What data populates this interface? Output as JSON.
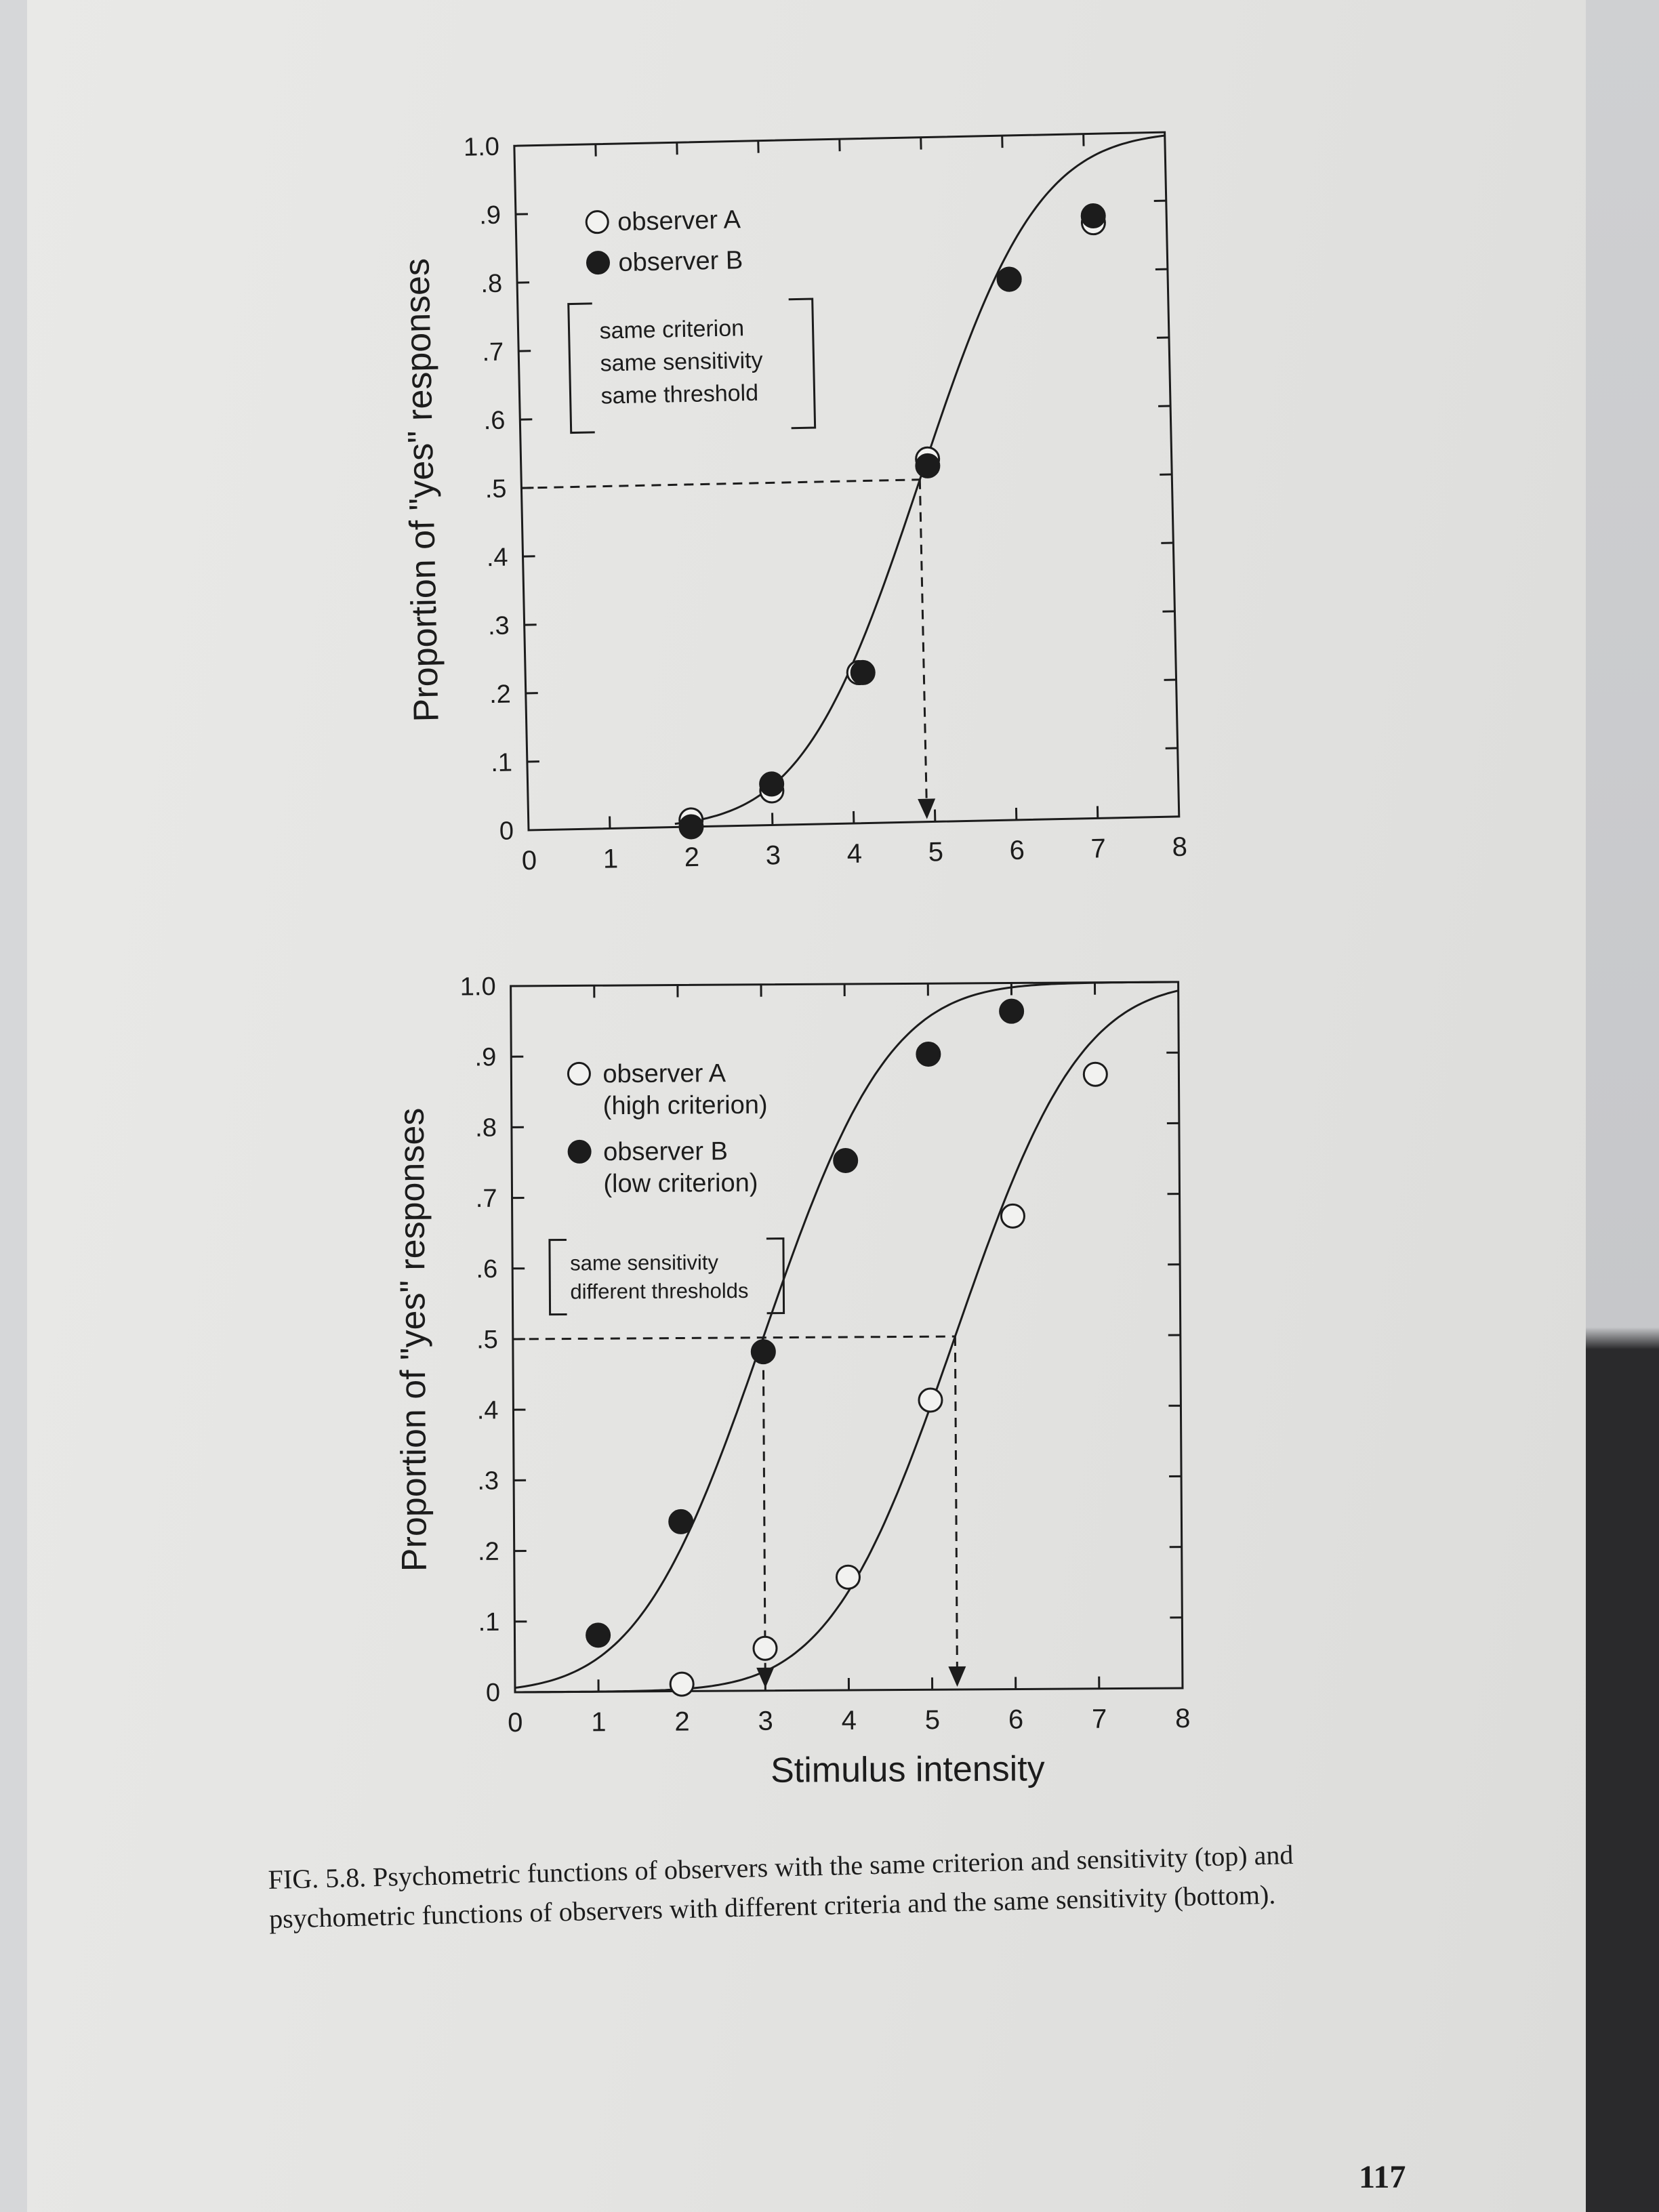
{
  "chart_data": [
    {
      "type": "line",
      "title": "",
      "xlabel": "",
      "ylabel": "Proportion of \"yes\" responses",
      "xlim": [
        0,
        8
      ],
      "ylim": [
        0,
        1.0
      ],
      "x_ticks": [
        "0",
        "1",
        "2",
        "3",
        "4",
        "5",
        "6",
        "7",
        "8"
      ],
      "y_ticks": [
        "0",
        ".1",
        ".2",
        ".3",
        ".4",
        ".5",
        ".6",
        ".7",
        ".8",
        ".9",
        "1.0"
      ],
      "legend": [
        "observer A",
        "observer B"
      ],
      "legend_position": "top-left",
      "annotation": [
        "same criterion",
        "same sensitivity",
        "same threshold"
      ],
      "series": [
        {
          "name": "observer A",
          "marker": "open-circle",
          "x": [
            2,
            3,
            4.1,
            5,
            6.05,
            7.1
          ],
          "y": [
            0.01,
            0.05,
            0.22,
            0.53,
            0.79,
            0.87
          ]
        },
        {
          "name": "observer B",
          "marker": "filled-circle",
          "x": [
            2,
            3,
            4.15,
            5,
            6.05,
            7.1
          ],
          "y": [
            0.0,
            0.06,
            0.22,
            0.52,
            0.79,
            0.88
          ]
        }
      ],
      "curve": {
        "mu": 4.9,
        "sigma": 1.2
      },
      "threshold": {
        "x": 4.9,
        "y": 0.5
      }
    },
    {
      "type": "line",
      "title": "",
      "xlabel": "Stimulus intensity",
      "ylabel": "Proportion of \"yes\" responses",
      "xlim": [
        0,
        8
      ],
      "ylim": [
        0,
        1.0
      ],
      "x_ticks": [
        "0",
        "1",
        "2",
        "3",
        "4",
        "5",
        "6",
        "7",
        "8"
      ],
      "y_ticks": [
        "0",
        ".1",
        ".2",
        ".3",
        ".4",
        ".5",
        ".6",
        ".7",
        ".8",
        ".9",
        "1.0"
      ],
      "legend": [
        "observer A",
        "(high criterion)",
        "observer B",
        "(low criterion)"
      ],
      "legend_position": "top-left",
      "annotation": [
        "same sensitivity",
        "different thresholds"
      ],
      "series": [
        {
          "name": "observer A",
          "marker": "open-circle",
          "x": [
            2,
            3,
            4,
            5,
            6,
            7
          ],
          "y": [
            0.01,
            0.06,
            0.16,
            0.41,
            0.67,
            0.87
          ]
        },
        {
          "name": "observer B",
          "marker": "filled-circle",
          "x": [
            1,
            2,
            3,
            4,
            5,
            6
          ],
          "y": [
            0.08,
            0.24,
            0.48,
            0.75,
            0.9,
            0.96
          ]
        }
      ],
      "curves": [
        {
          "mu": 5.3,
          "sigma": 1.2
        },
        {
          "mu": 3.0,
          "sigma": 1.2
        }
      ],
      "thresholds": [
        {
          "x": 3.0,
          "y": 0.5
        },
        {
          "x": 5.3,
          "y": 0.5
        }
      ]
    }
  ],
  "caption": {
    "text": "FIG. 5.8.  Psychometric functions of observers with the same criterion and sensitivity (top) and psychometric functions of observers with different criteria and the same sensitivity (bottom)."
  },
  "page_number": "117"
}
